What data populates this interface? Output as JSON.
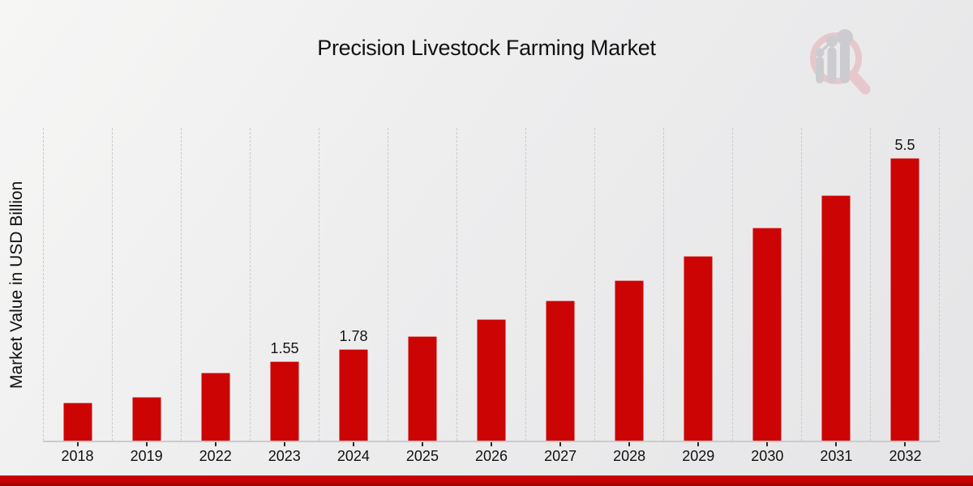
{
  "header": {
    "title": "Precision Livestock Farming Market"
  },
  "axes": {
    "ylabel": "Market Value in USD Billion"
  },
  "theme": {
    "bar_color": "#cc0404",
    "footer_band_red": "#c40202",
    "footer_band_dark_red": "#9b0101",
    "background_gray": "#ececee",
    "gridline_gray": "#c9c9cc",
    "logo_ring_pink": "#e6c4c8",
    "logo_bars_gray": "#c8c8cd"
  },
  "branding": {
    "logo": "magnifier-bar-chart-logo"
  },
  "chart_data": {
    "type": "bar",
    "title": "Precision Livestock Farming Market",
    "xlabel": "",
    "ylabel": "Market Value in USD Billion",
    "unit": "USD Billion",
    "legend": "none",
    "grid": "vertical-dashed-only",
    "ylim": [
      0,
      6.08
    ],
    "categories": [
      "2018",
      "2019",
      "2022",
      "2023",
      "2024",
      "2025",
      "2026",
      "2027",
      "2028",
      "2029",
      "2030",
      "2031",
      "2032"
    ],
    "values": [
      0.74,
      0.85,
      1.33,
      1.55,
      1.78,
      2.04,
      2.36,
      2.72,
      3.12,
      3.59,
      4.15,
      4.78,
      5.5
    ],
    "point_labels": [
      "",
      "",
      "",
      "1.55",
      "1.78",
      "",
      "",
      "",
      "",
      "",
      "",
      "",
      "5.5"
    ],
    "bar_color": "#cc0404"
  }
}
